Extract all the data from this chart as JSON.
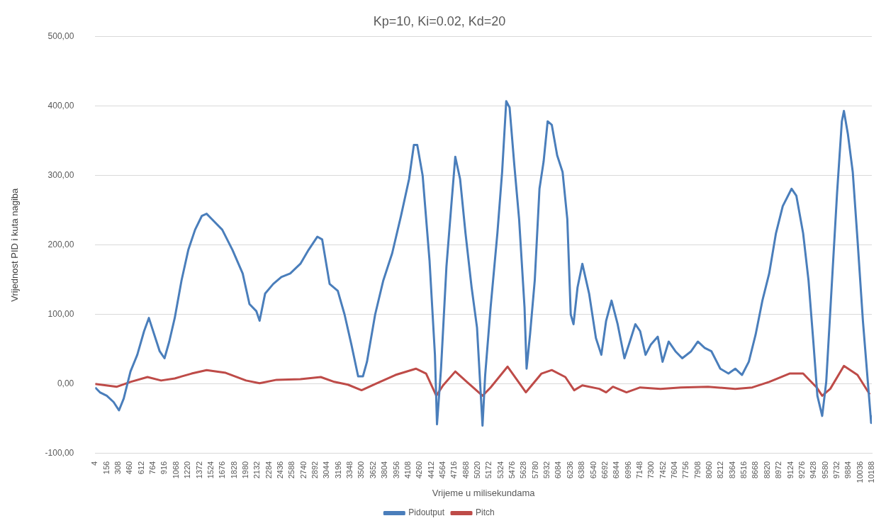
{
  "chart_data": {
    "type": "line",
    "title": "Kp=10, Ki=0.02, Kd=20",
    "xlabel": "Vrijeme u milisekundama",
    "ylabel": "Vrijednost PID i kuta nagiba",
    "xlim": [
      4,
      10188
    ],
    "xticks": [
      4,
      156,
      308,
      460,
      612,
      764,
      916,
      1068,
      1220,
      1372,
      1524,
      1676,
      1828,
      1980,
      2132,
      2284,
      2436,
      2588,
      2740,
      2892,
      3044,
      3196,
      3348,
      3500,
      3652,
      3804,
      3956,
      4108,
      4260,
      4412,
      4564,
      4716,
      4868,
      5020,
      5172,
      5324,
      5476,
      5628,
      5780,
      5932,
      6084,
      6236,
      6388,
      6540,
      6692,
      6844,
      6996,
      7148,
      7300,
      7452,
      7604,
      7756,
      7908,
      8060,
      8212,
      8364,
      8516,
      8668,
      8820,
      8972,
      9124,
      9276,
      9428,
      9580,
      9732,
      9884,
      10036,
      10188
    ],
    "ylim": [
      -100,
      500
    ],
    "yticks": [
      {
        "value": -100,
        "label": "-100,00"
      },
      {
        "value": 0,
        "label": "0,00"
      },
      {
        "value": 100,
        "label": "100,00"
      },
      {
        "value": 200,
        "label": "200,00"
      },
      {
        "value": 300,
        "label": "300,00"
      },
      {
        "value": 400,
        "label": "400,00"
      },
      {
        "value": 500,
        "label": "500,00"
      }
    ],
    "grid": "y",
    "legend": "bottom",
    "marker": "none",
    "line_style": "solid",
    "series": [
      {
        "name": "Pidoutput",
        "color": "#4a7ebb",
        "x": [
          4,
          66,
          156,
          245,
          316,
          378,
          467,
          556,
          645,
          708,
          779,
          850,
          913,
          975,
          1047,
          1136,
          1225,
          1314,
          1403,
          1465,
          1537,
          1670,
          1804,
          1938,
          2027,
          2116,
          2160,
          2232,
          2339,
          2445,
          2561,
          2695,
          2802,
          2918,
          2980,
          3078,
          3185,
          3274,
          3363,
          3452,
          3515,
          3568,
          3675,
          3782,
          3898,
          4014,
          4120,
          4183,
          4227,
          4298,
          4388,
          4459,
          4486,
          4539,
          4610,
          4673,
          4726,
          4789,
          4860,
          4940,
          5011,
          5083,
          5118,
          5189,
          5278,
          5340,
          5394,
          5438,
          5500,
          5563,
          5634,
          5661,
          5706,
          5768,
          5830,
          5884,
          5937,
          5991,
          6062,
          6133,
          6195,
          6240,
          6276,
          6329,
          6392,
          6481,
          6570,
          6641,
          6704,
          6775,
          6855,
          6944,
          7015,
          7087,
          7150,
          7221,
          7292,
          7381,
          7444,
          7524,
          7613,
          7702,
          7818,
          7907,
          7996,
          8085,
          8201,
          8308,
          8397,
          8486,
          8575,
          8664,
          8753,
          8842,
          8931,
          9020,
          9136,
          9198,
          9287,
          9358,
          9421,
          9474,
          9537,
          9590,
          9661,
          9733,
          9795,
          9822,
          9875,
          9938,
          10000,
          10071,
          10143,
          10179,
          10188
        ],
        "values": [
          -5,
          -12,
          -17,
          -26,
          -38,
          -21,
          18,
          42,
          76,
          95,
          71,
          47,
          37,
          61,
          95,
          149,
          193,
          222,
          242,
          245,
          237,
          222,
          193,
          159,
          115,
          105,
          91,
          130,
          144,
          154,
          159,
          173,
          193,
          212,
          208,
          144,
          134,
          100,
          57,
          11,
          11,
          32,
          100,
          149,
          188,
          242,
          295,
          344,
          344,
          300,
          178,
          42,
          -58,
          22,
          169,
          256,
          327,
          295,
          217,
          139,
          81,
          -60,
          13,
          110,
          217,
          305,
          407,
          398,
          315,
          237,
          110,
          22,
          71,
          149,
          281,
          320,
          378,
          373,
          329,
          305,
          237,
          100,
          86,
          139,
          173,
          130,
          66,
          42,
          91,
          120,
          86,
          37,
          61,
          86,
          76,
          42,
          57,
          68,
          32,
          61,
          47,
          37,
          47,
          61,
          52,
          47,
          22,
          15,
          22,
          13,
          32,
          71,
          120,
          159,
          217,
          256,
          281,
          271,
          217,
          149,
          61,
          -17,
          -46,
          3,
          139,
          276,
          378,
          393,
          359,
          305,
          208,
          91,
          -7,
          -56,
          -45
        ]
      },
      {
        "name": "Pitch",
        "color": "#be4b48",
        "x": [
          4,
          289,
          467,
          690,
          868,
          1047,
          1269,
          1465,
          1715,
          1982,
          2160,
          2383,
          2695,
          2962,
          3140,
          3318,
          3497,
          3675,
          3942,
          4209,
          4343,
          4477,
          4566,
          4726,
          4878,
          5083,
          5189,
          5412,
          5652,
          5857,
          5991,
          6169,
          6285,
          6392,
          6615,
          6704,
          6793,
          6971,
          7150,
          7417,
          7684,
          8040,
          8397,
          8620,
          8842,
          9109,
          9287,
          9465,
          9537,
          9643,
          9822,
          10000,
          10161
        ],
        "values": [
          0,
          -4,
          3,
          10,
          5,
          8,
          15,
          20,
          16,
          5,
          1,
          6,
          7,
          10,
          3,
          -1,
          -9,
          0,
          13,
          22,
          15,
          -17,
          -2,
          18,
          3,
          -17,
          -5,
          25,
          -12,
          15,
          20,
          10,
          -9,
          -2,
          -7,
          -12,
          -4,
          -12,
          -5,
          -7,
          -5,
          -4,
          -7,
          -5,
          3,
          15,
          15,
          -5,
          -17,
          -7,
          26,
          13,
          -15
        ]
      }
    ]
  }
}
